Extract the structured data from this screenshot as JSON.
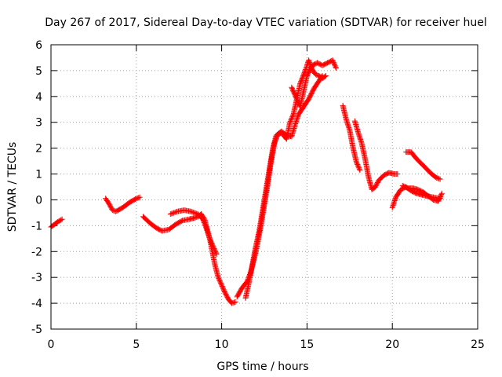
{
  "chart_data": {
    "type": "scatter",
    "title": "Day 267 of 2017, Sidereal Day-to-day VTEC variation (SDTVAR) for receiver huel",
    "xlabel": "GPS time / hours",
    "ylabel": "SDTVAR / TECUs",
    "xlim": [
      0,
      25
    ],
    "ylim": [
      -5,
      6
    ],
    "x_ticks": [
      "0",
      "5",
      "10",
      "15",
      "20",
      "25"
    ],
    "y_ticks": [
      "-5",
      "-4",
      "-3",
      "-2",
      "-1",
      "0",
      "1",
      "2",
      "3",
      "4",
      "5",
      "6"
    ],
    "grid": true,
    "marker": "+",
    "color": "#ff0000",
    "series": [
      {
        "segments": [
          [
            [
              0.0,
              -1.05
            ],
            [
              0.2,
              -0.95
            ],
            [
              0.4,
              -0.85
            ],
            [
              0.65,
              -0.75
            ]
          ],
          [
            [
              3.2,
              0.05
            ],
            [
              3.4,
              -0.15
            ],
            [
              3.6,
              -0.4
            ],
            [
              3.8,
              -0.45
            ],
            [
              4.2,
              -0.3
            ],
            [
              4.6,
              -0.1
            ],
            [
              5.0,
              0.05
            ],
            [
              5.2,
              0.1
            ]
          ],
          [
            [
              5.4,
              -0.65
            ],
            [
              5.8,
              -0.9
            ],
            [
              6.2,
              -1.1
            ],
            [
              6.5,
              -1.2
            ],
            [
              6.9,
              -1.15
            ],
            [
              7.3,
              -0.95
            ],
            [
              7.7,
              -0.8
            ],
            [
              8.1,
              -0.75
            ],
            [
              8.4,
              -0.7
            ],
            [
              8.6,
              -0.65
            ],
            [
              8.8,
              -0.55
            ],
            [
              9.0,
              -0.75
            ],
            [
              9.3,
              -1.5
            ],
            [
              9.6,
              -2.5
            ],
            [
              9.8,
              -3.0
            ],
            [
              10.0,
              -3.3
            ],
            [
              10.2,
              -3.6
            ],
            [
              10.4,
              -3.85
            ],
            [
              10.6,
              -4.0
            ],
            [
              10.8,
              -3.95
            ]
          ],
          [
            [
              7.0,
              -0.55
            ],
            [
              7.4,
              -0.45
            ],
            [
              7.8,
              -0.4
            ],
            [
              8.2,
              -0.45
            ],
            [
              8.6,
              -0.55
            ],
            [
              8.9,
              -0.75
            ],
            [
              9.1,
              -1.1
            ],
            [
              9.3,
              -1.5
            ],
            [
              9.5,
              -1.8
            ],
            [
              9.7,
              -2.1
            ]
          ],
          [
            [
              10.9,
              -3.75
            ],
            [
              11.2,
              -3.4
            ],
            [
              11.5,
              -3.15
            ],
            [
              11.7,
              -2.8
            ],
            [
              11.9,
              -2.3
            ],
            [
              12.1,
              -1.7
            ],
            [
              12.3,
              -1.0
            ],
            [
              12.5,
              -0.2
            ],
            [
              12.7,
              0.6
            ],
            [
              12.9,
              1.5
            ],
            [
              13.1,
              2.2
            ],
            [
              13.3,
              2.55
            ],
            [
              13.5,
              2.65
            ],
            [
              13.8,
              2.5
            ],
            [
              14.1,
              2.45
            ],
            [
              14.3,
              2.9
            ],
            [
              14.5,
              3.3
            ],
            [
              14.8,
              3.6
            ],
            [
              15.1,
              3.9
            ],
            [
              15.4,
              4.3
            ],
            [
              15.7,
              4.6
            ],
            [
              15.9,
              4.8
            ]
          ],
          [
            [
              11.4,
              -3.8
            ],
            [
              11.6,
              -3.2
            ],
            [
              11.8,
              -2.5
            ],
            [
              12.0,
              -1.8
            ],
            [
              12.2,
              -1.2
            ],
            [
              12.4,
              -0.4
            ],
            [
              12.6,
              0.4
            ],
            [
              12.8,
              1.2
            ],
            [
              13.0,
              2.0
            ],
            [
              13.2,
              2.5
            ],
            [
              13.5,
              2.6
            ],
            [
              13.8,
              2.35
            ],
            [
              14.0,
              3.0
            ],
            [
              14.2,
              3.3
            ],
            [
              14.4,
              3.9
            ],
            [
              14.6,
              4.5
            ],
            [
              14.9,
              5.0
            ],
            [
              15.1,
              5.4
            ],
            [
              15.3,
              5.05
            ],
            [
              15.5,
              4.85
            ],
            [
              15.7,
              4.8
            ],
            [
              15.9,
              4.7
            ],
            [
              16.1,
              4.8
            ]
          ],
          [
            [
              14.1,
              4.35
            ],
            [
              14.4,
              3.9
            ],
            [
              14.6,
              3.6
            ],
            [
              14.8,
              4.2
            ],
            [
              15.0,
              4.8
            ],
            [
              15.3,
              5.2
            ],
            [
              15.6,
              5.3
            ],
            [
              15.9,
              5.2
            ],
            [
              16.2,
              5.3
            ],
            [
              16.5,
              5.4
            ],
            [
              16.7,
              5.1
            ]
          ],
          [
            [
              17.1,
              3.65
            ],
            [
              17.3,
              3.1
            ],
            [
              17.5,
              2.7
            ],
            [
              17.7,
              2.0
            ],
            [
              17.9,
              1.45
            ],
            [
              18.1,
              1.15
            ]
          ],
          [
            [
              17.8,
              3.05
            ],
            [
              18.0,
              2.6
            ],
            [
              18.2,
              2.2
            ],
            [
              18.4,
              1.6
            ],
            [
              18.6,
              0.9
            ],
            [
              18.8,
              0.4
            ],
            [
              19.0,
              0.5
            ],
            [
              19.2,
              0.75
            ],
            [
              19.5,
              0.95
            ],
            [
              19.8,
              1.05
            ],
            [
              20.1,
              1.0
            ],
            [
              20.3,
              1.0
            ]
          ],
          [
            [
              20.0,
              -0.3
            ],
            [
              20.2,
              0.1
            ],
            [
              20.5,
              0.4
            ],
            [
              20.8,
              0.5
            ],
            [
              21.1,
              0.35
            ],
            [
              21.4,
              0.25
            ],
            [
              21.7,
              0.2
            ],
            [
              22.0,
              0.15
            ],
            [
              22.4,
              0.1
            ],
            [
              22.8,
              0.05
            ]
          ],
          [
            [
              20.6,
              0.55
            ],
            [
              20.9,
              0.45
            ],
            [
              21.2,
              0.45
            ],
            [
              21.5,
              0.4
            ],
            [
              21.8,
              0.3
            ],
            [
              22.1,
              0.15
            ],
            [
              22.4,
              0.0
            ],
            [
              22.7,
              -0.05
            ],
            [
              22.9,
              0.25
            ]
          ],
          [
            [
              20.8,
              1.85
            ],
            [
              21.1,
              1.85
            ],
            [
              21.4,
              1.6
            ],
            [
              21.7,
              1.4
            ],
            [
              22.0,
              1.2
            ],
            [
              22.3,
              1.0
            ],
            [
              22.6,
              0.85
            ],
            [
              22.8,
              0.8
            ]
          ]
        ]
      }
    ]
  }
}
